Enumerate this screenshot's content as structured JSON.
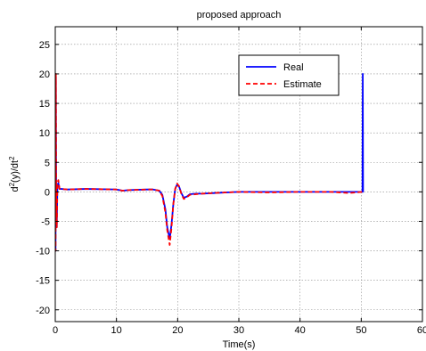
{
  "chart_data": {
    "type": "line",
    "title": "proposed approach",
    "xlabel": "Time(s)",
    "ylabel": {
      "base": "d",
      "sup1": "2",
      "mid": "(y)/dt",
      "sup2": "2"
    },
    "xlim": [
      0,
      60
    ],
    "ylim": [
      -22,
      28
    ],
    "xticks": [
      0,
      10,
      20,
      30,
      40,
      50,
      60
    ],
    "xtick_labels": [
      "0",
      "10",
      "20",
      "30",
      "40",
      "50",
      "60"
    ],
    "yticks": [
      -20,
      -15,
      -10,
      -5,
      0,
      5,
      10,
      15,
      20,
      25
    ],
    "ytick_labels": [
      "-20",
      "-15",
      "-10",
      "-5",
      "0",
      "5",
      "10",
      "15",
      "20",
      "25"
    ],
    "grid": true,
    "legend": "top-right",
    "series": [
      {
        "name": "Real",
        "color": "#0000ff",
        "style": "solid",
        "x": [
          0,
          0.05,
          0.1,
          0.15,
          0.25,
          0.35,
          0.5,
          0.7,
          1.0,
          2,
          5,
          10,
          11,
          12,
          15,
          16,
          17,
          17.5,
          18,
          18.3,
          18.7,
          19.0,
          19.3,
          19.6,
          19.9,
          20.2,
          20.6,
          21.0,
          21.5,
          22,
          23,
          24,
          26,
          28,
          30,
          35,
          40,
          45,
          48,
          50.2,
          50.25,
          50.3,
          50.35
        ],
        "y": [
          0,
          -10,
          19.5,
          0.5,
          -6,
          1,
          1.5,
          0.5,
          0.5,
          0.4,
          0.5,
          0.4,
          0.2,
          0.3,
          0.4,
          0.4,
          0.2,
          -0.5,
          -3,
          -6,
          -8,
          -5.5,
          -2,
          0.5,
          1.2,
          1,
          -0.2,
          -1,
          -0.8,
          -0.4,
          -0.3,
          -0.3,
          -0.2,
          -0.1,
          0,
          0,
          0,
          0,
          0,
          0,
          20,
          0,
          0
        ]
      },
      {
        "name": "Estimate",
        "color": "#ff0000",
        "style": "dashed",
        "x": [
          0,
          0.05,
          0.1,
          0.15,
          0.25,
          0.35,
          0.5,
          0.7,
          1.0,
          2,
          5,
          10,
          11,
          12,
          15,
          16,
          17,
          17.5,
          18,
          18.3,
          18.7,
          19.0,
          19.3,
          19.6,
          19.9,
          20.2,
          20.6,
          21.0,
          21.5,
          22,
          23,
          24,
          26,
          28,
          30,
          35,
          40,
          45,
          48,
          50.2
        ],
        "y": [
          0,
          -10,
          20,
          0.5,
          -6,
          1.5,
          2,
          0.5,
          0.5,
          0.4,
          0.5,
          0.4,
          0.2,
          0.3,
          0.4,
          0.4,
          0.2,
          -0.7,
          -3.5,
          -6.5,
          -9,
          -6,
          -2,
          0.5,
          1.4,
          1,
          -0.3,
          -1.2,
          -0.9,
          -0.5,
          -0.4,
          -0.3,
          -0.2,
          -0.1,
          0,
          -0.1,
          0,
          0,
          -0.2,
          0
        ]
      }
    ]
  }
}
